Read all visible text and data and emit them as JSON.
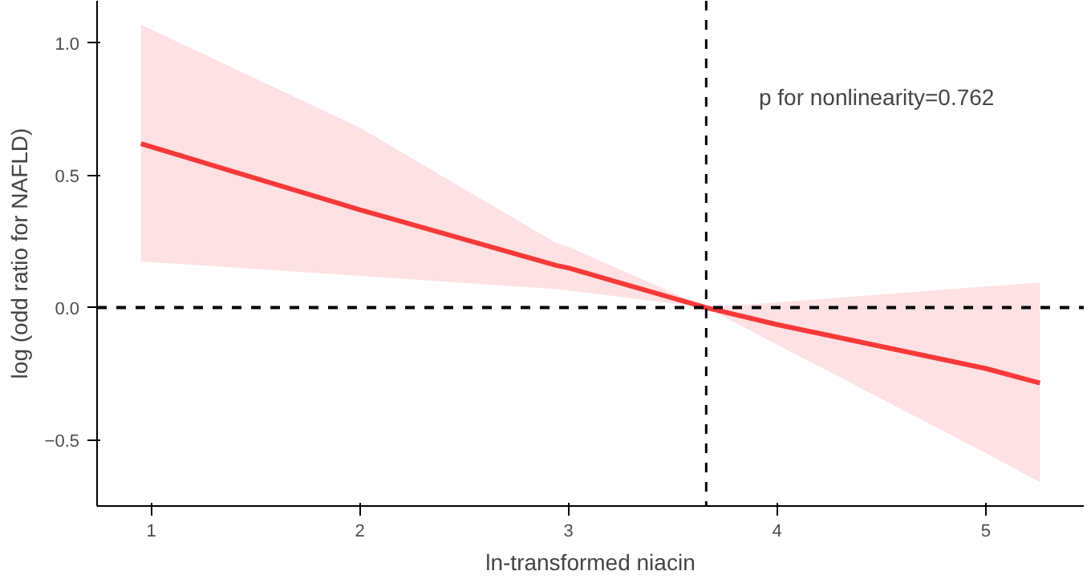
{
  "chart_data": {
    "type": "line",
    "xlabel": "ln-transformed niacin",
    "ylabel": "log (odd ratio for NAFLD)",
    "x": [
      0.95,
      2,
      2.94,
      3,
      3.66,
      4,
      5,
      5.26
    ],
    "series": [
      {
        "color": "#f8393a",
        "values": [
          0.62,
          0.37,
          0.16,
          0.15,
          0,
          -0.064,
          -0.23,
          -0.285
        ],
        "lower": [
          0.175,
          0.12,
          0.07,
          0.065,
          0,
          -0.14,
          -0.55,
          -0.66
        ],
        "upper": [
          1.07,
          0.68,
          0.245,
          0.23,
          0,
          0.02,
          0.08,
          0.095
        ]
      }
    ],
    "xlim": [
      0.74,
      5.47
    ],
    "ylim": [
      -0.75,
      1.16
    ],
    "xticks": [
      1,
      2,
      3,
      4,
      5
    ],
    "yticks": [
      {
        "value": -0.5,
        "label": "−0.5"
      },
      {
        "value": 0,
        "label": "0.0"
      },
      {
        "value": 0.5,
        "label": "0.5"
      },
      {
        "value": 1,
        "label": "1.0"
      }
    ],
    "ref_lines": [
      {
        "axis": "y",
        "value": 0,
        "color": "#000000",
        "line_style": "dashed"
      },
      {
        "axis": "x",
        "value": 3.66,
        "color": "#000000",
        "line_style": "dashed"
      }
    ],
    "annotations": [
      "p for nonlinearity=0.762"
    ],
    "grid": false,
    "line_style": "solid"
  }
}
